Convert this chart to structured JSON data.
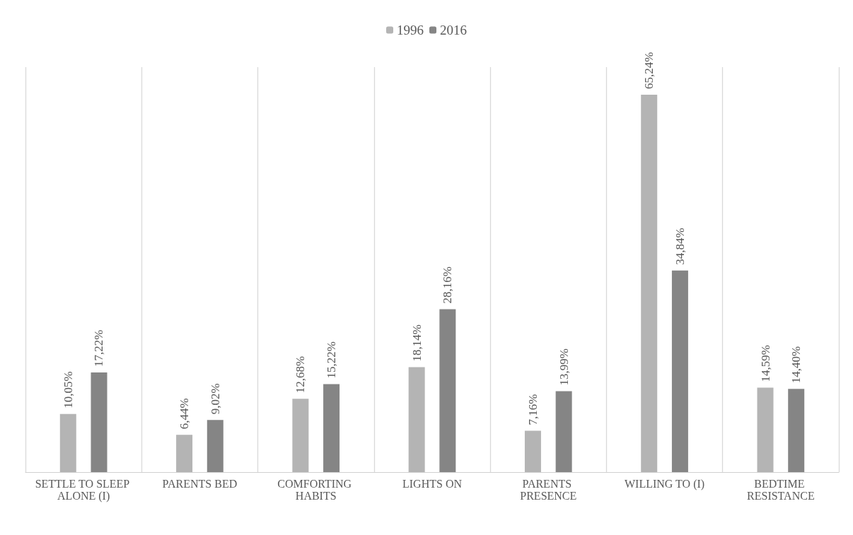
{
  "chart_data": {
    "type": "bar",
    "categories": [
      "SETTLE TO SLEEP ALONE (I)",
      "PARENTS BED",
      "COMFORTING HABITS",
      "LIGHTS ON",
      "PARENTS PRESENCE",
      "WILLING TO (I)",
      "BEDTIME RESISTANCE"
    ],
    "series": [
      {
        "name": "1996",
        "color": "#b4b4b4",
        "values": [
          10.05,
          6.44,
          12.68,
          18.14,
          7.16,
          65.24,
          14.59
        ],
        "value_labels": [
          "10,05%",
          "6,44%",
          "12,68%",
          "18,14%",
          "7,16%",
          "65,24%",
          "14,59%"
        ]
      },
      {
        "name": "2016",
        "color": "#858585",
        "values": [
          17.22,
          9.02,
          15.22,
          28.16,
          13.99,
          34.84,
          14.4
        ],
        "value_labels": [
          "17,22%",
          "9,02%",
          "15,22%",
          "28,16%",
          "13,99%",
          "34,84%",
          "14,40%"
        ]
      }
    ],
    "ylim": [
      0,
      70
    ],
    "tick_labels": "x",
    "grid": "x",
    "legend": "top"
  }
}
